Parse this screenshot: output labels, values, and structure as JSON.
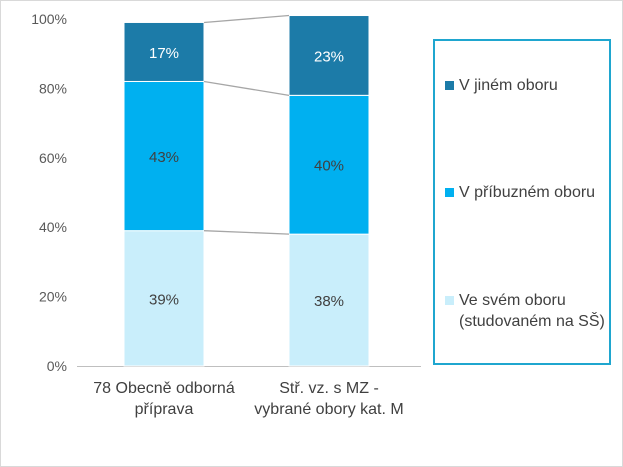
{
  "chart_data": {
    "type": "stacked-bar-100",
    "title": "",
    "xlabel": "",
    "ylabel": "",
    "ylim": [
      0,
      100
    ],
    "yticks": [
      "0%",
      "20%",
      "40%",
      "60%",
      "80%",
      "100%"
    ],
    "grid": false,
    "legend_position": "right",
    "series_lines": true,
    "categories": [
      [
        "78 Obecně odborná",
        "příprava"
      ],
      [
        "Stř. vz. s MZ -",
        "vybrané obory kat. M"
      ]
    ],
    "series": [
      {
        "name": "Ve svém oboru (studovaném na SŠ)",
        "legend_lines": [
          "Ve svém oboru",
          "(studovaném na SŠ)"
        ],
        "color": "#c9eefb",
        "values": [
          39,
          38
        ],
        "labels": [
          "39%",
          "38%"
        ]
      },
      {
        "name": "V příbuzném oboru",
        "legend_lines": [
          "V příbuzném oboru"
        ],
        "color": "#00b0f0",
        "values": [
          43,
          40
        ],
        "labels": [
          "43%",
          "40%"
        ]
      },
      {
        "name": "V jiném oboru",
        "legend_lines": [
          "V jiném oboru"
        ],
        "color": "#1c7ba8",
        "values": [
          17,
          23
        ],
        "labels": [
          "17%",
          "23%"
        ]
      }
    ]
  }
}
